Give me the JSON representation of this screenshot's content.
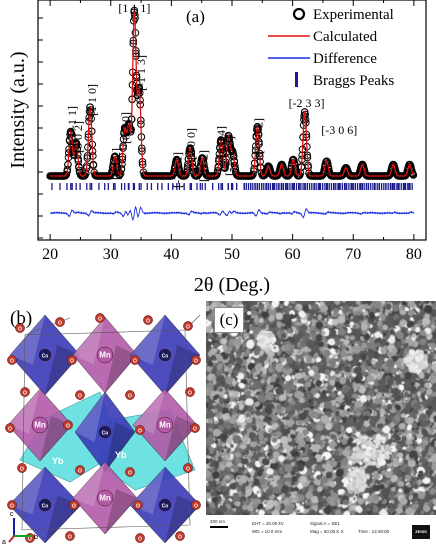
{
  "chart_data": {
    "type": "line",
    "panel_label": "(a)",
    "xlabel": "2θ (Deg.)",
    "ylabel": "Intensity (a.u.)",
    "xlim": [
      18,
      82
    ],
    "xticks": [
      20,
      30,
      40,
      50,
      60,
      70,
      80
    ],
    "series": [
      {
        "name": "Experimental",
        "style": "open-circle",
        "color": "#000000"
      },
      {
        "name": "Calculated",
        "style": "line",
        "color": "#e01010"
      },
      {
        "name": "Difference",
        "style": "line",
        "color": "#1e2ee0"
      },
      {
        "name": "Braggs Peaks",
        "style": "tick",
        "color": "#1a1a8c"
      }
    ],
    "peaks": [
      {
        "x": 23.4,
        "h": 0.27,
        "label": "[-1 -1 1]"
      },
      {
        "x": 24.3,
        "h": 0.2,
        "label": "[0 0 2]"
      },
      {
        "x": 26.6,
        "h": 0.42,
        "label": "[1 1 0]"
      },
      {
        "x": 30.7,
        "h": 0.12,
        "label": "[0 1 2]"
      },
      {
        "x": 32.3,
        "h": 0.28,
        "label": "[0 2 0]"
      },
      {
        "x": 33.0,
        "h": 0.3,
        "label": ""
      },
      {
        "x": 33.9,
        "h": 1.0,
        "label": "[1 1 1]"
      },
      {
        "x": 34.7,
        "h": 0.52,
        "label": "[-1 1 3]"
      },
      {
        "x": 40.9,
        "h": 0.1,
        "label": "[-2 1 1]"
      },
      {
        "x": 43.1,
        "h": 0.17,
        "label": "[2 0 0]"
      },
      {
        "x": 45.1,
        "h": 0.11,
        "label": "[1 1 2]"
      },
      {
        "x": 48.2,
        "h": 0.22,
        "label": "[0 0 4]"
      },
      {
        "x": 49.4,
        "h": 0.24,
        "label": "[-2 -2 3]"
      },
      {
        "x": 50.1,
        "h": 0.14,
        "label": ""
      },
      {
        "x": 54.2,
        "h": 0.3,
        "label": "[-3 0 2]"
      },
      {
        "x": 56.0,
        "h": 0.06,
        "label": ""
      },
      {
        "x": 58.2,
        "h": 0.07,
        "label": ""
      },
      {
        "x": 60.1,
        "h": 0.1,
        "label": ""
      },
      {
        "x": 62.0,
        "h": 0.39,
        "label": "[-2 3 3]"
      },
      {
        "x": 65.6,
        "h": 0.09,
        "label": "[-3 0 6]"
      },
      {
        "x": 68.8,
        "h": 0.05,
        "label": ""
      },
      {
        "x": 71.5,
        "h": 0.07,
        "label": ""
      },
      {
        "x": 76.6,
        "h": 0.07,
        "label": ""
      },
      {
        "x": 79.3,
        "h": 0.07,
        "label": ""
      }
    ],
    "grid": false,
    "legend_position": "top-right"
  },
  "structure_panel": {
    "label": "(b)",
    "atom_labels": {
      "mn": "Mn",
      "yb": "Yb",
      "co": "Co",
      "o": "O"
    },
    "axes": {
      "c": "c",
      "a": "a",
      "b": "b"
    },
    "colors": {
      "mn_octa": "#b25aa8",
      "co_octa": "#3a3ab8",
      "yb_poly": "#55dede",
      "oxygen": "#c0392b"
    }
  },
  "sem_panel": {
    "label": "(c)",
    "scale": "200 nm",
    "eht": "EHT = 20.00 kV",
    "wd": "WD = 10.0 mm",
    "signal": "Signal A = SE1",
    "mag": "Mag = 50.00 K X",
    "time": "Time : 13:48:00",
    "logo": "ZEISS"
  }
}
